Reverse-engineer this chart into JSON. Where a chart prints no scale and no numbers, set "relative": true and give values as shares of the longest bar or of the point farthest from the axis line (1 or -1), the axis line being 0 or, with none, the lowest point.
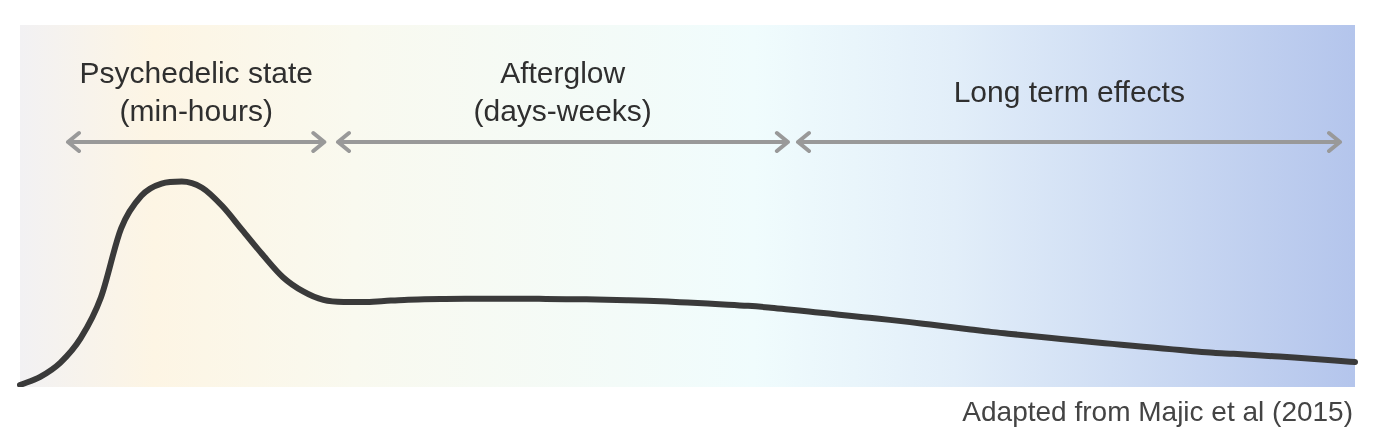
{
  "chart_data": {
    "type": "line",
    "relative": true,
    "categories": [
      null,
      null,
      null,
      null,
      null,
      null,
      null,
      null,
      null,
      null,
      null,
      null,
      null,
      null,
      null,
      null,
      null,
      null,
      null,
      null,
      null,
      null,
      null,
      null,
      null,
      null,
      null,
      null,
      null,
      null,
      null,
      null,
      null,
      null,
      null,
      null,
      null,
      null,
      null,
      null,
      null,
      null,
      null,
      null,
      null,
      null,
      null,
      null,
      null,
      null,
      null,
      null,
      null,
      null,
      null,
      null,
      null,
      null,
      null,
      null,
      null,
      null,
      null,
      null,
      null,
      null,
      null
    ],
    "values": [
      0,
      0.04,
      0.11,
      0.23,
      0.43,
      0.77,
      0.93,
      0.99,
      1,
      0.97,
      0.88,
      0.76,
      0.64,
      0.53,
      0.46,
      0.418,
      0.408,
      0.408,
      0.413,
      0.418,
      0.421,
      0.423,
      0.424,
      0.424,
      0.424,
      0.424,
      0.423,
      0.422,
      0.421,
      0.419,
      0.417,
      0.414,
      0.41,
      0.405,
      0.4,
      0.395,
      0.389,
      0.381,
      0.371,
      0.361,
      0.351,
      0.34,
      0.33,
      0.32,
      0.309,
      0.297,
      0.285,
      0.273,
      0.261,
      0.251,
      0.241,
      0.231,
      0.221,
      0.211,
      0.202,
      0.193,
      0.184,
      0.175,
      0.166,
      0.158,
      0.153,
      0.147,
      0.141,
      0.135,
      0.128,
      0.12,
      0.113
    ],
    "color": "#3a3a3a",
    "marker": "none",
    "line_style": "solid",
    "legend": false,
    "tick_labels": false,
    "annotations": [
      "Psychedelic state\n(min-hours)",
      "Afterglow\n(days-weeks)",
      "Long term effects",
      "Adapted from Majic et al (2015)"
    ]
  }
}
